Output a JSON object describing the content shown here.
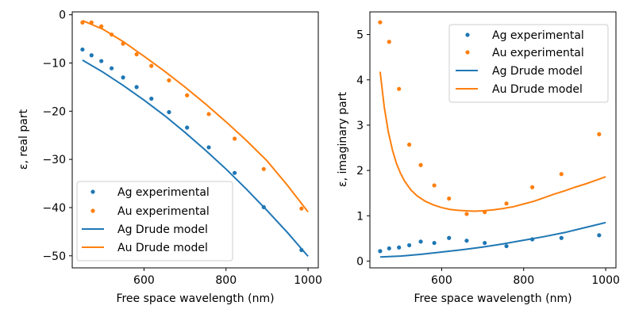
{
  "colors": {
    "ag": "#1f77b4",
    "au": "#ff7f0e"
  },
  "chart_data": [
    {
      "type": "line",
      "xlabel": "Free space wavelength (nm)",
      "ylabel": "ε, real part",
      "xlim": [
        425,
        1025
      ],
      "ylim": [
        -52.5,
        0.6
      ],
      "xticks": [
        600,
        800,
        1000
      ],
      "yticks": [
        0,
        -10,
        -20,
        -30,
        -40,
        -50
      ],
      "yticklabels": [
        "0",
        "−10",
        "−20",
        "−30",
        "−40",
        "−50"
      ],
      "legend": "lower-left",
      "grid": false,
      "series": [
        {
          "name": "Ag experimental",
          "kind": "scatter",
          "color_key": "ag",
          "x": [
            450,
            472,
            496,
            521,
            549,
            582,
            618,
            661,
            705,
            758,
            821,
            892,
            984
          ],
          "y": [
            -7.2,
            -8.4,
            -9.6,
            -11.1,
            -13.0,
            -15.0,
            -17.4,
            -20.2,
            -23.4,
            -27.5,
            -32.8,
            -39.9,
            -48.8
          ]
        },
        {
          "name": "Au experimental",
          "kind": "scatter",
          "color_key": "au",
          "x": [
            450,
            472,
            496,
            521,
            549,
            582,
            618,
            661,
            705,
            758,
            821,
            892,
            984
          ],
          "y": [
            -1.6,
            -1.6,
            -2.4,
            -4.1,
            -6.0,
            -8.2,
            -10.6,
            -13.6,
            -16.7,
            -20.6,
            -25.7,
            -32.0,
            -40.2
          ]
        },
        {
          "name": "Ag Drude model",
          "kind": "line",
          "color_key": "ag",
          "x": [
            450,
            500,
            550,
            600,
            650,
            700,
            750,
            800,
            850,
            900,
            950,
            1000
          ],
          "y": [
            -9.4,
            -11.9,
            -14.7,
            -17.7,
            -20.9,
            -24.4,
            -28.1,
            -32.0,
            -36.2,
            -40.6,
            -45.2,
            -50.1
          ]
        },
        {
          "name": "Au Drude model",
          "kind": "line",
          "color_key": "au",
          "x": [
            450,
            500,
            550,
            600,
            650,
            700,
            750,
            800,
            850,
            900,
            950,
            1000
          ],
          "y": [
            -1.2,
            -3.0,
            -5.6,
            -8.6,
            -11.7,
            -15.0,
            -18.5,
            -22.2,
            -26.1,
            -30.3,
            -35.4,
            -40.9
          ]
        }
      ]
    },
    {
      "type": "line",
      "xlabel": "Free space wavelength (nm)",
      "ylabel": "ε, imaginary part",
      "xlim": [
        425,
        1025
      ],
      "ylim": [
        -0.15,
        5.5
      ],
      "xticks": [
        600,
        800,
        1000
      ],
      "yticks": [
        0,
        1,
        2,
        3,
        4,
        5
      ],
      "yticklabels": [
        "0",
        "1",
        "2",
        "3",
        "4",
        "5"
      ],
      "legend": "upper-right",
      "grid": false,
      "series": [
        {
          "name": "Ag experimental",
          "kind": "scatter",
          "color_key": "ag",
          "x": [
            450,
            472,
            496,
            521,
            549,
            582,
            618,
            661,
            705,
            758,
            821,
            892,
            984
          ],
          "y": [
            0.22,
            0.28,
            0.3,
            0.35,
            0.43,
            0.4,
            0.51,
            0.45,
            0.4,
            0.33,
            0.48,
            0.51,
            0.57
          ]
        },
        {
          "name": "Au experimental",
          "kind": "scatter",
          "color_key": "au",
          "x": [
            450,
            472,
            496,
            521,
            549,
            582,
            618,
            661,
            705,
            758,
            821,
            892,
            984
          ],
          "y": [
            5.27,
            4.84,
            3.8,
            2.57,
            2.12,
            1.67,
            1.38,
            1.04,
            1.08,
            1.27,
            1.63,
            1.92,
            2.8
          ]
        },
        {
          "name": "Ag Drude model",
          "kind": "line",
          "color_key": "ag",
          "x": [
            450,
            500,
            550,
            600,
            650,
            700,
            750,
            800,
            850,
            900,
            950,
            1000
          ],
          "y": [
            0.09,
            0.11,
            0.15,
            0.2,
            0.25,
            0.31,
            0.38,
            0.46,
            0.54,
            0.63,
            0.74,
            0.85
          ]
        },
        {
          "name": "Au Drude model",
          "kind": "line",
          "color_key": "au",
          "x": [
            450,
            460,
            470,
            480,
            490,
            500,
            510,
            525,
            540,
            560,
            580,
            600,
            620,
            640,
            660,
            680,
            700,
            725,
            750,
            775,
            800,
            825,
            850,
            875,
            900,
            925,
            950,
            975,
            1000
          ],
          "y": [
            4.18,
            3.4,
            2.85,
            2.45,
            2.15,
            1.93,
            1.76,
            1.57,
            1.44,
            1.32,
            1.24,
            1.18,
            1.14,
            1.12,
            1.11,
            1.1,
            1.11,
            1.13,
            1.16,
            1.2,
            1.26,
            1.32,
            1.4,
            1.48,
            1.55,
            1.63,
            1.7,
            1.78,
            1.86
          ]
        }
      ]
    }
  ]
}
